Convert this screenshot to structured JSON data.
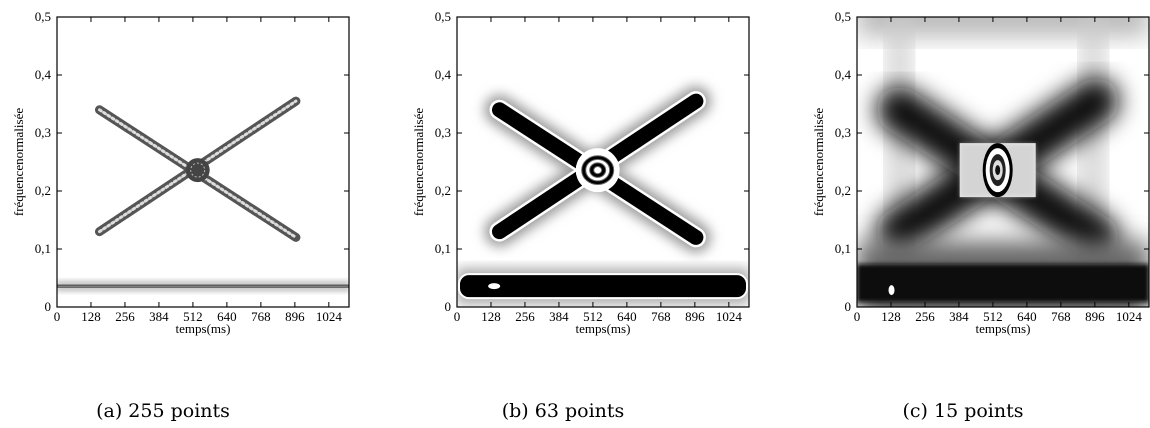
{
  "figure": {
    "panels": [
      {
        "ylabel": "fréquencenormalisée",
        "xlabel": "temps(ms)",
        "caption": "(a) 255 points",
        "xticks": [
          0,
          128,
          256,
          384,
          512,
          640,
          768,
          896,
          1024
        ],
        "yticks": [
          {
            "value": 0,
            "label": "0"
          },
          {
            "value": 0.1,
            "label": "0,1"
          },
          {
            "value": 0.2,
            "label": "0,2"
          },
          {
            "value": 0.3,
            "label": "0,3"
          },
          {
            "value": 0.4,
            "label": "0,4"
          },
          {
            "value": 0.5,
            "label": "0,5"
          }
        ]
      },
      {
        "ylabel": "fréquencenormalisée",
        "xlabel": "temps(ms)",
        "caption": "(b) 63 points",
        "xticks": [
          0,
          128,
          256,
          384,
          512,
          640,
          768,
          896,
          1024
        ],
        "yticks": [
          {
            "value": 0,
            "label": "0"
          },
          {
            "value": 0.1,
            "label": "0,1"
          },
          {
            "value": 0.2,
            "label": "0,2"
          },
          {
            "value": 0.3,
            "label": "0,3"
          },
          {
            "value": 0.4,
            "label": "0,4"
          },
          {
            "value": 0.5,
            "label": "0,5"
          }
        ]
      },
      {
        "ylabel": "fréquencenormalisée",
        "xlabel": "temps(ms)",
        "caption": "(c) 15 points",
        "xticks": [
          0,
          128,
          256,
          384,
          512,
          640,
          768,
          896,
          1024
        ],
        "yticks": [
          {
            "value": 0,
            "label": "0"
          },
          {
            "value": 0.1,
            "label": "0,1"
          },
          {
            "value": 0.2,
            "label": "0,2"
          },
          {
            "value": 0.3,
            "label": "0,3"
          },
          {
            "value": 0.4,
            "label": "0,4"
          },
          {
            "value": 0.5,
            "label": "0,5"
          }
        ]
      }
    ]
  }
}
